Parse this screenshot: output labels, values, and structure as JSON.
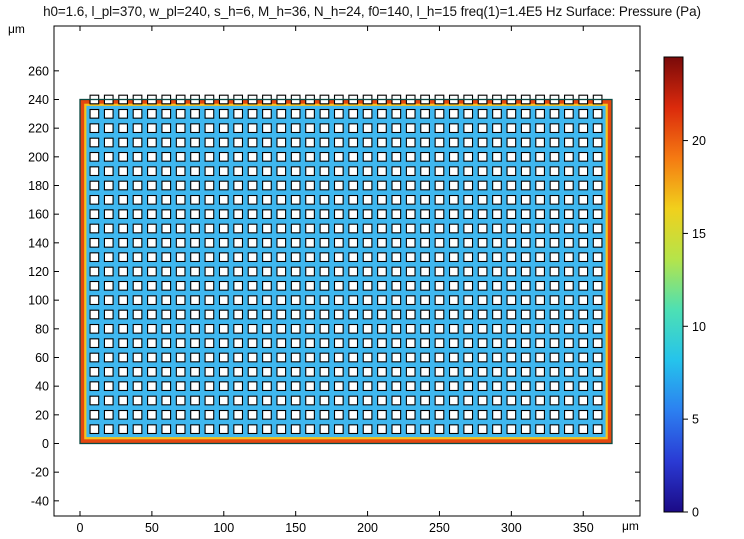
{
  "chart_data": {
    "type": "heatmap",
    "title": "h0=1.6, l_pl=370, w_pl=240, s_h=6, M_h=36, N_h=24, f0=140, l_h=15 freq(1)=1.4E5 Hz  Surface: Pressure (Pa)",
    "xlabel": "μm",
    "ylabel": "μm",
    "xlim": [
      -18,
      390
    ],
    "ylim": [
      -50,
      280
    ],
    "xticks": [
      0,
      50,
      100,
      150,
      200,
      250,
      300,
      350
    ],
    "yticks": [
      -40,
      -20,
      0,
      20,
      40,
      60,
      80,
      100,
      120,
      140,
      160,
      180,
      200,
      220,
      240,
      260
    ],
    "plate": {
      "x_range": [
        0,
        370
      ],
      "y_range": [
        0,
        240
      ]
    },
    "holes": {
      "count_x": 36,
      "count_y": 24,
      "size": 6,
      "first_center": [
        10,
        10
      ],
      "pitch": 10
    },
    "field": {
      "interior_value": 5.8,
      "edge_value": 24
    },
    "colorbar": {
      "min": 0,
      "max": 24.5,
      "ticks": [
        0,
        5,
        10,
        15,
        20
      ],
      "colors": [
        "#1b0a86",
        "#2a3ad4",
        "#2c7ff0",
        "#25c3ec",
        "#4de0b4",
        "#b5e44a",
        "#f1d01c",
        "#f57a12",
        "#db2a0c",
        "#7a0a0a"
      ]
    }
  }
}
